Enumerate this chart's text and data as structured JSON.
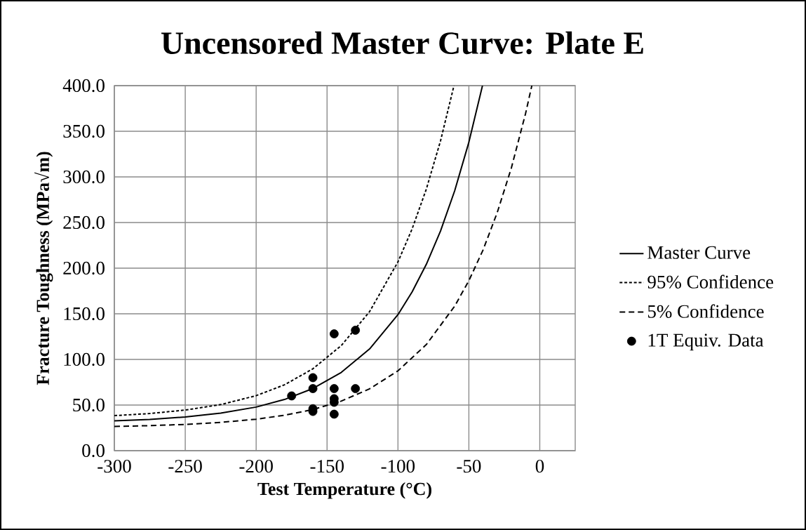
{
  "chart_data": {
    "type": "line",
    "title": "Uncensored Master Curve: Plate E",
    "xlabel": "Test Temperature (°C)",
    "ylabel": "Fracture Toughness (MPa√m)",
    "xlim": [
      -300,
      25
    ],
    "xticks": [
      -300,
      -250,
      -200,
      -150,
      -100,
      -50,
      0
    ],
    "ylim": [
      0,
      400
    ],
    "yticks": [
      {
        "value": 0,
        "label": "0.0"
      },
      {
        "value": 50,
        "label": "50.0"
      },
      {
        "value": 100,
        "label": "100.0"
      },
      {
        "value": 150,
        "label": "150.0"
      },
      {
        "value": 200,
        "label": "200.0"
      },
      {
        "value": 250,
        "label": "250.0"
      },
      {
        "value": 300,
        "label": "300.0"
      },
      {
        "value": 350,
        "label": "350.0"
      },
      {
        "value": 400,
        "label": "400.0"
      }
    ],
    "grid": true,
    "legend": "right",
    "series": [
      {
        "name": "Master Curve",
        "color": "#000000",
        "line_style": "solid",
        "x": [
          -300,
          -275,
          -250,
          -225,
          -200,
          -180,
          -160,
          -140,
          -120,
          -100,
          -90,
          -80,
          -70,
          -60,
          -50,
          -40.4
        ],
        "values": [
          32.7,
          34.3,
          36.9,
          41.1,
          47.8,
          56.1,
          68.1,
          85.7,
          111.5,
          149.1,
          174.1,
          204.2,
          240.7,
          284.8,
          338,
          400
        ]
      },
      {
        "name": "95% Confidence",
        "color": "#000000",
        "line_style": "dotted",
        "x": [
          -300,
          -275,
          -250,
          -225,
          -200,
          -180,
          -160,
          -140,
          -120,
          -100,
          -90,
          -80,
          -70,
          -60.5
        ],
        "values": [
          38.4,
          40.7,
          44.5,
          50.5,
          60.3,
          72.2,
          89.7,
          115.1,
          152.4,
          206.9,
          243.1,
          286.6,
          339.4,
          400
        ]
      },
      {
        "name": "5% Confidence",
        "color": "#000000",
        "line_style": "dashed",
        "x": [
          -300,
          -275,
          -250,
          -225,
          -200,
          -180,
          -160,
          -140,
          -120,
          -100,
          -80,
          -60,
          -50,
          -40,
          -30,
          -20,
          -10,
          -5.6
        ],
        "values": [
          26.6,
          27.4,
          28.8,
          31.0,
          34.5,
          38.8,
          45.1,
          54.3,
          67.8,
          87.5,
          116.3,
          158.4,
          186.3,
          219.9,
          260.9,
          310,
          369.6,
          400
        ]
      },
      {
        "name": "1T Equiv. Data",
        "type": "scatter",
        "color": "#000000",
        "marker": "circle",
        "x": [
          -175,
          -160,
          -160,
          -160,
          -160,
          -145,
          -145,
          -145,
          -145,
          -145,
          -130,
          -130
        ],
        "values": [
          60,
          80,
          68,
          46,
          43,
          128,
          68,
          57,
          53,
          40,
          132,
          68
        ]
      }
    ]
  }
}
